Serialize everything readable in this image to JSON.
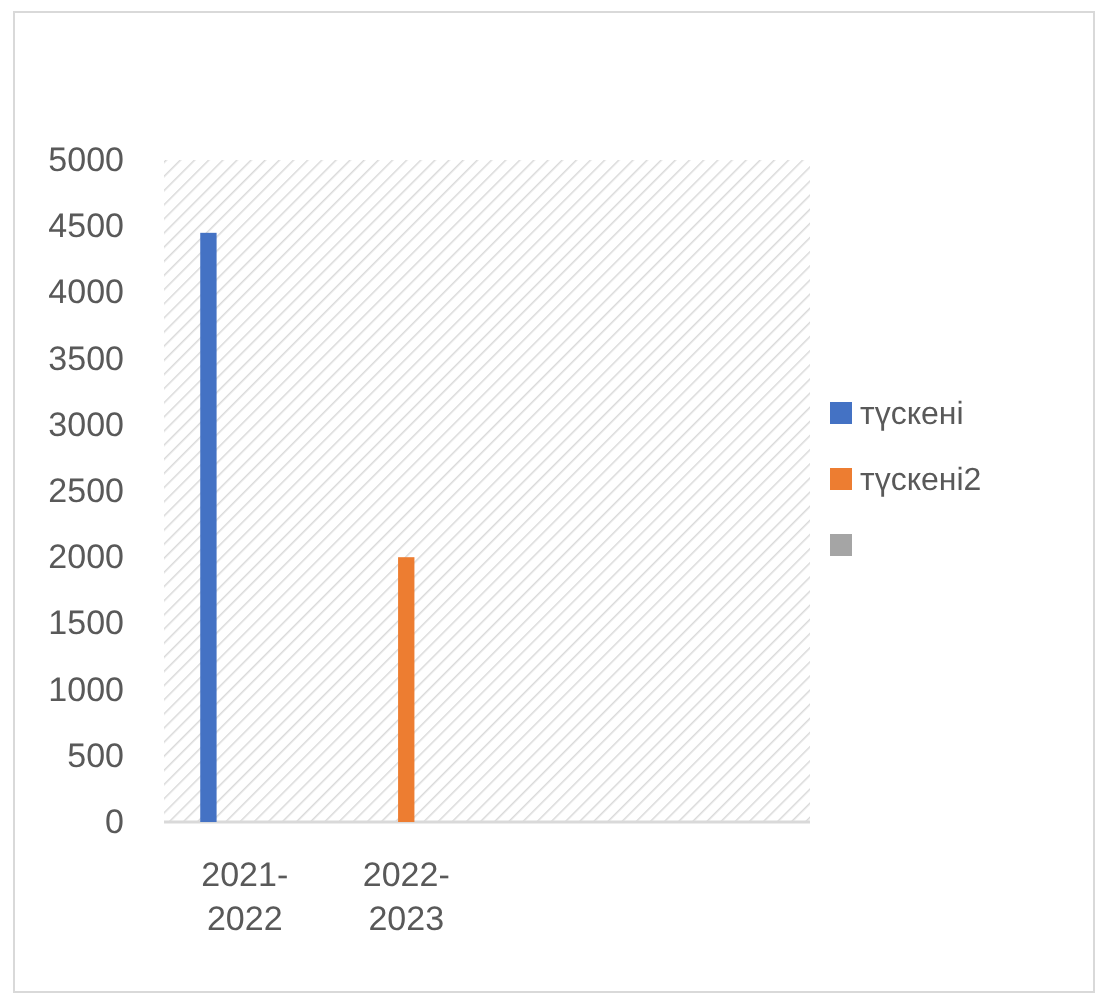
{
  "chart_data": {
    "type": "bar",
    "categories": [
      "2021-2022",
      "2022-2023",
      null,
      null
    ],
    "series": [
      {
        "name": "түскені",
        "color": "#4472c4",
        "values": [
          4450,
          null,
          null,
          null
        ]
      },
      {
        "name": "түскені2",
        "color": "#ed7d31",
        "values": [
          null,
          2000,
          null,
          null
        ]
      },
      {
        "color": "#a5a5a5",
        "values": [
          null,
          null,
          null,
          null
        ]
      }
    ],
    "ylim": [
      0,
      5000
    ],
    "yticks": [
      0,
      500,
      1000,
      1500,
      2000,
      2500,
      3000,
      3500,
      4000,
      4500,
      5000
    ],
    "grid": false,
    "legend": "right"
  }
}
